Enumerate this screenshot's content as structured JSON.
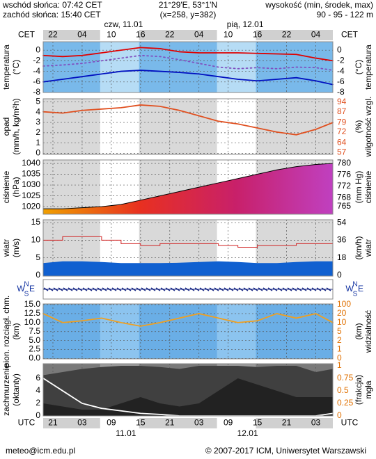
{
  "header": {
    "sunrise": "wschód słońca: 07:42 CET",
    "sunset": "zachód słońca: 15:40 CET",
    "coords": "21°29'E, 53°1'N",
    "grid": "(x=258, y=382)",
    "elev_title": "wysokość (min, środek, max)",
    "elev": "90 - 95 - 122 m"
  },
  "time_axis": {
    "xlim": [
      0,
      59.5
    ],
    "top_label": "CET",
    "bottom_label": "UTC",
    "cet_ticks": [
      {
        "value": 2,
        "label": "22"
      },
      {
        "value": 8,
        "label": "04"
      },
      {
        "value": 14,
        "label": "10"
      },
      {
        "value": 20,
        "label": "16"
      },
      {
        "value": 26,
        "label": "22"
      },
      {
        "value": 32,
        "label": "04"
      },
      {
        "value": 38,
        "label": "10"
      },
      {
        "value": 44,
        "label": "16"
      },
      {
        "value": 50,
        "label": "22"
      },
      {
        "value": 56,
        "label": "04"
      }
    ],
    "utc_ticks": [
      {
        "value": 2,
        "label": "21"
      },
      {
        "value": 8,
        "label": "03"
      },
      {
        "value": 14,
        "label": "09"
      },
      {
        "value": 20,
        "label": "15"
      },
      {
        "value": 26,
        "label": "21"
      },
      {
        "value": 32,
        "label": "03"
      },
      {
        "value": 38,
        "label": "09"
      },
      {
        "value": 44,
        "label": "15"
      },
      {
        "value": 50,
        "label": "21"
      },
      {
        "value": 56,
        "label": "03"
      }
    ],
    "top_dates": [
      {
        "value": 16.5,
        "label": "czw, 11.01"
      },
      {
        "value": 41.5,
        "label": "pią, 12.01"
      }
    ],
    "bottom_dates": [
      {
        "value": 17,
        "label": "11.01"
      },
      {
        "value": 42,
        "label": "12.01"
      }
    ],
    "daylight": [
      [
        11.7,
        19.7
      ],
      [
        35.7,
        43.7
      ]
    ]
  },
  "chart_data": [
    {
      "type": "line",
      "ylabel": [
        "temperatura",
        "(°C)"
      ],
      "y2label": [
        "(°C)",
        "temperatura"
      ],
      "background": {
        "night": "#79b9ea",
        "day": "#b6dcf5"
      },
      "ylim": [
        -8,
        1.6
      ],
      "yticks": [
        0,
        -2,
        -4,
        -6,
        -8
      ],
      "y2lim": [
        -8,
        1.6
      ],
      "y2ticks": [
        0,
        -2,
        -4,
        -6,
        -8
      ],
      "x": [
        0,
        4,
        8,
        12,
        16,
        20,
        24,
        28,
        32,
        36,
        40,
        44,
        48,
        52,
        56,
        59.5
      ],
      "series": [
        {
          "color": "#e00000",
          "style": "line",
          "values": [
            -1,
            -1.2,
            -1,
            -0.5,
            0,
            0.5,
            0.3,
            -0.3,
            -0.5,
            -0.5,
            -0.5,
            -0.6,
            -0.7,
            -0.8,
            -1.5,
            -2
          ]
        },
        {
          "color": "#8050c0",
          "style": "dotted",
          "values": [
            -3,
            -2.8,
            -2.5,
            -2,
            -1.5,
            -1,
            -1.2,
            -1.8,
            -2.5,
            -3.2,
            -3.5,
            -3.3,
            -3.5,
            -3.2,
            -3.3,
            -3.8
          ]
        },
        {
          "color": "#0010c0",
          "style": "line",
          "values": [
            -6,
            -5.5,
            -5,
            -4.5,
            -4,
            -3.8,
            -4,
            -4.2,
            -4.5,
            -5,
            -5.5,
            -5.8,
            -5.5,
            -5.2,
            -5.8,
            -6.5
          ]
        }
      ]
    },
    {
      "type": "line",
      "ylabel": [
        "opad",
        "(mm/h, kg/m²h)"
      ],
      "y2label": [
        "(%)",
        "wilgotność wzgl."
      ],
      "background": {
        "night": "#d9d9d9",
        "day": "#ffffff"
      },
      "ylim": [
        -0.1,
        5.3
      ],
      "yticks": [
        0,
        1,
        2,
        3,
        4,
        5
      ],
      "y2lim": [
        55.5,
        96.6
      ],
      "y2ticks": [
        57,
        64,
        72,
        79,
        87,
        94
      ],
      "y2color": "#e05020",
      "x": [
        0,
        4,
        8,
        12,
        16,
        20,
        24,
        28,
        32,
        36,
        40,
        44,
        48,
        52,
        56,
        59.5
      ],
      "series": [
        {
          "color": "#e05020",
          "style": "line",
          "axis": "y2",
          "values": [
            87,
            86,
            88,
            89,
            90,
            92,
            91,
            88,
            84,
            80,
            78,
            75,
            72,
            70,
            74,
            79
          ]
        }
      ]
    },
    {
      "type": "area",
      "ylabel": [
        "ciśnienie",
        "(hPa)"
      ],
      "y2label": [
        "(mm Hg)",
        "ciśnienie"
      ],
      "background": {
        "night": "#d9d9d9",
        "day": "#ffffff"
      },
      "ylim": [
        1016.5,
        1041.6
      ],
      "yticks": [
        1020,
        1025,
        1030,
        1035,
        1040
      ],
      "y2lim": [
        762.3,
        781.2
      ],
      "y2ticks": [
        765,
        768,
        772,
        776,
        780
      ],
      "gradient": [
        "#f0a000",
        "#e83020",
        "#c8206a",
        "#c040c0"
      ],
      "x": [
        0,
        4,
        8,
        12,
        16,
        20,
        24,
        28,
        32,
        36,
        40,
        44,
        48,
        52,
        56,
        59.5
      ],
      "series": [
        {
          "color": "#000000",
          "style": "area",
          "values": [
            1019,
            1019,
            1019.5,
            1020,
            1021,
            1023,
            1025,
            1027,
            1029,
            1031,
            1033,
            1035,
            1037,
            1038.5,
            1039.5,
            1040
          ]
        }
      ]
    },
    {
      "type": "area",
      "ylabel": [
        "wiatr",
        "(m/s)"
      ],
      "y2label": [
        "(km/h)",
        "wiatr"
      ],
      "background": {
        "night": "#d9d9d9",
        "day": "#ffffff"
      },
      "ylim": [
        -0.2,
        15.8
      ],
      "yticks": [
        0,
        5,
        10,
        15
      ],
      "y2lim": [
        -0.7,
        56.9
      ],
      "y2ticks": [
        0,
        18,
        36,
        54
      ],
      "x": [
        0,
        4,
        8,
        12,
        16,
        20,
        24,
        28,
        32,
        36,
        40,
        44,
        48,
        52,
        56,
        59.5
      ],
      "series": [
        {
          "color": "#1060d0",
          "style": "area",
          "values": [
            3.5,
            4,
            4,
            3.8,
            3.5,
            3.5,
            3.5,
            3.6,
            3.8,
            4,
            3.8,
            3.5,
            3.5,
            3.8,
            4,
            4
          ]
        },
        {
          "color": "#d02020",
          "style": "step",
          "values": [
            10,
            11,
            11,
            10,
            9,
            8.5,
            9,
            9,
            9,
            8.5,
            8,
            8.5,
            8.5,
            9,
            9,
            9.5
          ]
        }
      ]
    },
    {
      "type": "direction",
      "labels": [
        "W",
        "N",
        "S",
        "E"
      ],
      "background": {
        "night": "#ffffff",
        "day": "#ffffff"
      }
    },
    {
      "type": "line",
      "ylabel": [
        "pion. rozciągł. chm.",
        "(km)"
      ],
      "y2label": [
        "(km)",
        "widzialność"
      ],
      "background": {
        "night": "#6aaee6",
        "day": "#8cc4ef"
      },
      "ylim": [
        -0.1,
        15.2
      ],
      "yticks": [
        {
          "value": 0,
          "label": "0.0"
        },
        2.5,
        {
          "value": 5,
          "label": "5.0"
        },
        7.5,
        {
          "value": 10,
          "label": "10.0"
        },
        12.5,
        {
          "value": 15,
          "label": "15.0"
        }
      ],
      "y2scale": "piecewise",
      "y2ticks": [
        0,
        1,
        2,
        5,
        10,
        20,
        100
      ],
      "y2color": "#e07000",
      "x": [
        0,
        4,
        8,
        12,
        16,
        20,
        24,
        28,
        32,
        36,
        40,
        44,
        48,
        52,
        56,
        59.5
      ],
      "series": [
        {
          "color": "#f0a020",
          "style": "line",
          "axis": "y2",
          "values": [
            20,
            10,
            12,
            15,
            10,
            8,
            10,
            15,
            20,
            15,
            10,
            12,
            20,
            15,
            20,
            10
          ]
        }
      ]
    },
    {
      "type": "area",
      "ylabel": [
        "zachmurzenie",
        "(oktanty)"
      ],
      "y2label": [
        "(frakcja)",
        "mgła"
      ],
      "background": {
        "night": "#7a7a7a",
        "day": "#9a9a9a"
      },
      "ylim": [
        0,
        8.33
      ],
      "yticks": [
        0,
        2,
        4,
        6
      ],
      "y2lim": [
        0,
        1.04
      ],
      "y2ticks": [
        0,
        0.25,
        0.5,
        0.75,
        1
      ],
      "y2color": "#e07000",
      "x": [
        0,
        4,
        8,
        12,
        16,
        20,
        24,
        28,
        32,
        36,
        40,
        44,
        48,
        52,
        56,
        59.5
      ],
      "series": [
        {
          "color": "#404040",
          "style": "area",
          "values": [
            6.5,
            7,
            7.5,
            7.8,
            8,
            8,
            7.8,
            7.5,
            8,
            8,
            8,
            7.8,
            8,
            8,
            7,
            7.5
          ]
        },
        {
          "color": "#222222",
          "style": "area",
          "values": [
            2,
            1.5,
            1,
            1,
            2,
            3,
            2,
            1.5,
            2,
            4,
            6,
            5,
            4,
            3,
            3,
            3
          ]
        },
        {
          "color": "#ffffff",
          "style": "line",
          "axis": "y2",
          "values": [
            0.75,
            0.5,
            0.25,
            0.15,
            0.1,
            0.05,
            0.03,
            0,
            0,
            0,
            0,
            0,
            0,
            0,
            0,
            0.05
          ]
        }
      ]
    }
  ],
  "footer": {
    "email": "meteo@icm.edu.pl",
    "copyright": "© 2007-2017 ICM, Uniwersytet Warszawski"
  }
}
